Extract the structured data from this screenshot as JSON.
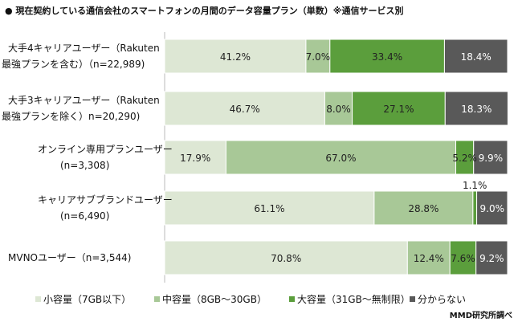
{
  "chart_data": {
    "type": "bar",
    "orientation": "horizontal",
    "stacked": true,
    "title": "●  現在契約している通信会社のスマートフォンの月間のデータ容量プラン（単数）※通信サービス別",
    "categories": [
      [
        "大手4キャリアユーザー（Rakuten",
        "最強プランを含む）（n=22,989)"
      ],
      [
        "大手3キャリアユーザー（Rakuten",
        "最強プランを除く）n=20,290)"
      ],
      [
        "オンライン専用プランユーザー",
        "(n=3,308)"
      ],
      [
        "キャリアサブブランドユーザー",
        "(n=6,490)"
      ],
      [
        "MVNOユーザー（n=3,544)"
      ]
    ],
    "series": [
      {
        "name": "小容量（7GB以下）",
        "color": "#dde7d4",
        "values": [
          41.2,
          46.7,
          17.9,
          61.1,
          70.8
        ]
      },
      {
        "name": "中容量（8GB～30GB）",
        "color": "#a8c897",
        "values": [
          7.0,
          8.0,
          67.0,
          28.8,
          12.4
        ]
      },
      {
        "name": "大容量（31GB～無制限）",
        "color": "#5b9e3c",
        "values": [
          33.4,
          27.1,
          5.2,
          1.1,
          7.6
        ]
      },
      {
        "name": "分からない",
        "color": "#595959",
        "values": [
          18.4,
          18.3,
          9.9,
          9.0,
          9.2
        ]
      }
    ],
    "value_format": "%",
    "xlim": [
      0,
      100
    ],
    "grid": false,
    "legend": "bottom",
    "source": "MMD研究所調べ"
  }
}
